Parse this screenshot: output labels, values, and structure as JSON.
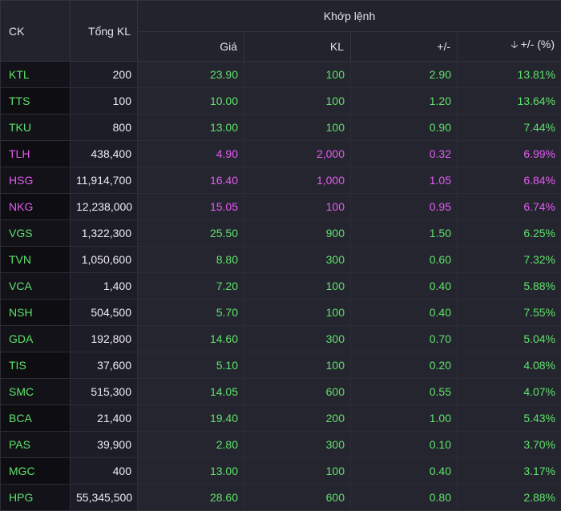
{
  "header": {
    "ck": "CK",
    "total_volume": "Tổng KL",
    "matched_group": "Khớp lệnh",
    "price": "Giá",
    "volume": "KL",
    "change": "+/-",
    "change_pct": "+/- (%)",
    "sort_icon": "arrow-down-icon"
  },
  "colors": {
    "up": "#5fe26b",
    "ceiling": "#e35cf2"
  },
  "rows": [
    {
      "ck": "KTL",
      "total": "200",
      "price": "23.90",
      "kl": "100",
      "chg": "2.90",
      "pct": "13.81%",
      "color": "green"
    },
    {
      "ck": "TTS",
      "total": "100",
      "price": "10.00",
      "kl": "100",
      "chg": "1.20",
      "pct": "13.64%",
      "color": "green"
    },
    {
      "ck": "TKU",
      "total": "800",
      "price": "13.00",
      "kl": "100",
      "chg": "0.90",
      "pct": "7.44%",
      "color": "green"
    },
    {
      "ck": "TLH",
      "total": "438,400",
      "price": "4.90",
      "kl": "2,000",
      "chg": "0.32",
      "pct": "6.99%",
      "color": "purple"
    },
    {
      "ck": "HSG",
      "total": "11,914,700",
      "price": "16.40",
      "kl": "1,000",
      "chg": "1.05",
      "pct": "6.84%",
      "color": "purple"
    },
    {
      "ck": "NKG",
      "total": "12,238,000",
      "price": "15.05",
      "kl": "100",
      "chg": "0.95",
      "pct": "6.74%",
      "color": "purple"
    },
    {
      "ck": "VGS",
      "total": "1,322,300",
      "price": "25.50",
      "kl": "900",
      "chg": "1.50",
      "pct": "6.25%",
      "color": "green"
    },
    {
      "ck": "TVN",
      "total": "1,050,600",
      "price": "8.80",
      "kl": "300",
      "chg": "0.60",
      "pct": "7.32%",
      "color": "green"
    },
    {
      "ck": "VCA",
      "total": "1,400",
      "price": "7.20",
      "kl": "100",
      "chg": "0.40",
      "pct": "5.88%",
      "color": "green"
    },
    {
      "ck": "NSH",
      "total": "504,500",
      "price": "5.70",
      "kl": "100",
      "chg": "0.40",
      "pct": "7.55%",
      "color": "green"
    },
    {
      "ck": "GDA",
      "total": "192,800",
      "price": "14.60",
      "kl": "300",
      "chg": "0.70",
      "pct": "5.04%",
      "color": "green"
    },
    {
      "ck": "TIS",
      "total": "37,600",
      "price": "5.10",
      "kl": "100",
      "chg": "0.20",
      "pct": "4.08%",
      "color": "green"
    },
    {
      "ck": "SMC",
      "total": "515,300",
      "price": "14.05",
      "kl": "600",
      "chg": "0.55",
      "pct": "4.07%",
      "color": "green"
    },
    {
      "ck": "BCA",
      "total": "21,400",
      "price": "19.40",
      "kl": "200",
      "chg": "1.00",
      "pct": "5.43%",
      "color": "green"
    },
    {
      "ck": "PAS",
      "total": "39,900",
      "price": "2.80",
      "kl": "300",
      "chg": "0.10",
      "pct": "3.70%",
      "color": "green"
    },
    {
      "ck": "MGC",
      "total": "400",
      "price": "13.00",
      "kl": "100",
      "chg": "0.40",
      "pct": "3.17%",
      "color": "green"
    },
    {
      "ck": "HPG",
      "total": "55,345,500",
      "price": "28.60",
      "kl": "600",
      "chg": "0.80",
      "pct": "2.88%",
      "color": "green"
    }
  ]
}
